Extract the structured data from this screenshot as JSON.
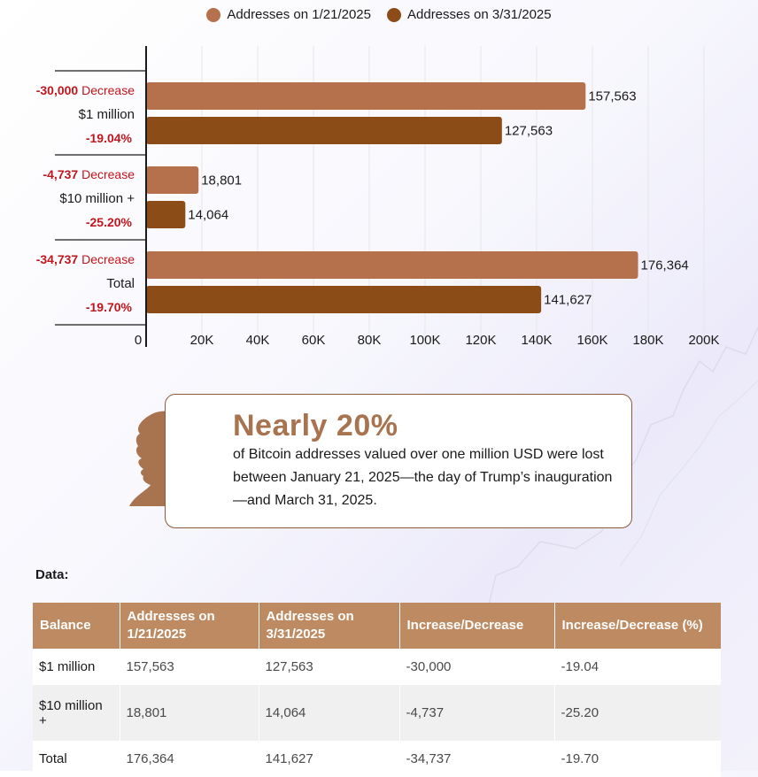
{
  "legend": [
    {
      "label": "Addresses on 1/21/2025",
      "color": "#b5714c"
    },
    {
      "label": "Addresses on 3/31/2025",
      "color": "#8b4c17"
    }
  ],
  "chart_data": {
    "type": "bar",
    "orientation": "horizontal",
    "categories": [
      "$1 million",
      "$10 million +",
      "Total"
    ],
    "series": [
      {
        "name": "Addresses on 1/21/2025",
        "values": [
          157563,
          18801,
          176364
        ],
        "labels": [
          "157,563",
          "18,801",
          "176,364"
        ],
        "color": "#b5714c"
      },
      {
        "name": "Addresses on 3/31/2025",
        "values": [
          127563,
          14064,
          141627
        ],
        "labels": [
          "127,563",
          "14,064",
          "141,627"
        ],
        "color": "#8b4c17"
      }
    ],
    "annotations": [
      {
        "change": "-30,000",
        "word": "Decrease",
        "pct": "-19.04%"
      },
      {
        "change": "-4,737",
        "word": "Decrease",
        "pct": "-25.20%"
      },
      {
        "change": "-34,737",
        "word": "Decrease",
        "pct": "-19.70%"
      }
    ],
    "xlim": [
      0,
      200000
    ],
    "xticks": [
      0,
      20000,
      40000,
      60000,
      80000,
      100000,
      120000,
      140000,
      160000,
      180000,
      200000
    ],
    "xtick_labels": [
      "0",
      "20K",
      "40K",
      "60K",
      "80K",
      "100K",
      "120K",
      "140K",
      "160K",
      "180K",
      "200K"
    ],
    "grid": true,
    "legend_position": "top-center"
  },
  "callout": {
    "headline": "Nearly 20%",
    "body": "of Bitcoin addresses valued over one million USD were lost between January 21, 2025—the day of Trump’s inauguration—and March 31, 2025."
  },
  "data_table": {
    "title": "Data:",
    "headers": [
      "Balance",
      "Addresses on 1/21/2025",
      "Addresses on 3/31/2025",
      "Increase/Decrease",
      "Increase/Decrease (%)"
    ],
    "rows": [
      [
        "$1 million",
        "157,563",
        "127,563",
        "-30,000",
        "-19.04"
      ],
      [
        "$10 million +",
        "18,801",
        "14,064",
        "-4,737",
        "-25.20"
      ],
      [
        "Total",
        "176,364",
        "141,627",
        "-34,737",
        "-19.70"
      ]
    ]
  },
  "colors": {
    "accent": "#be8a61",
    "decrease": "#c0161d",
    "callout_border": "#8a5a3a",
    "headline": "#a8734f"
  }
}
